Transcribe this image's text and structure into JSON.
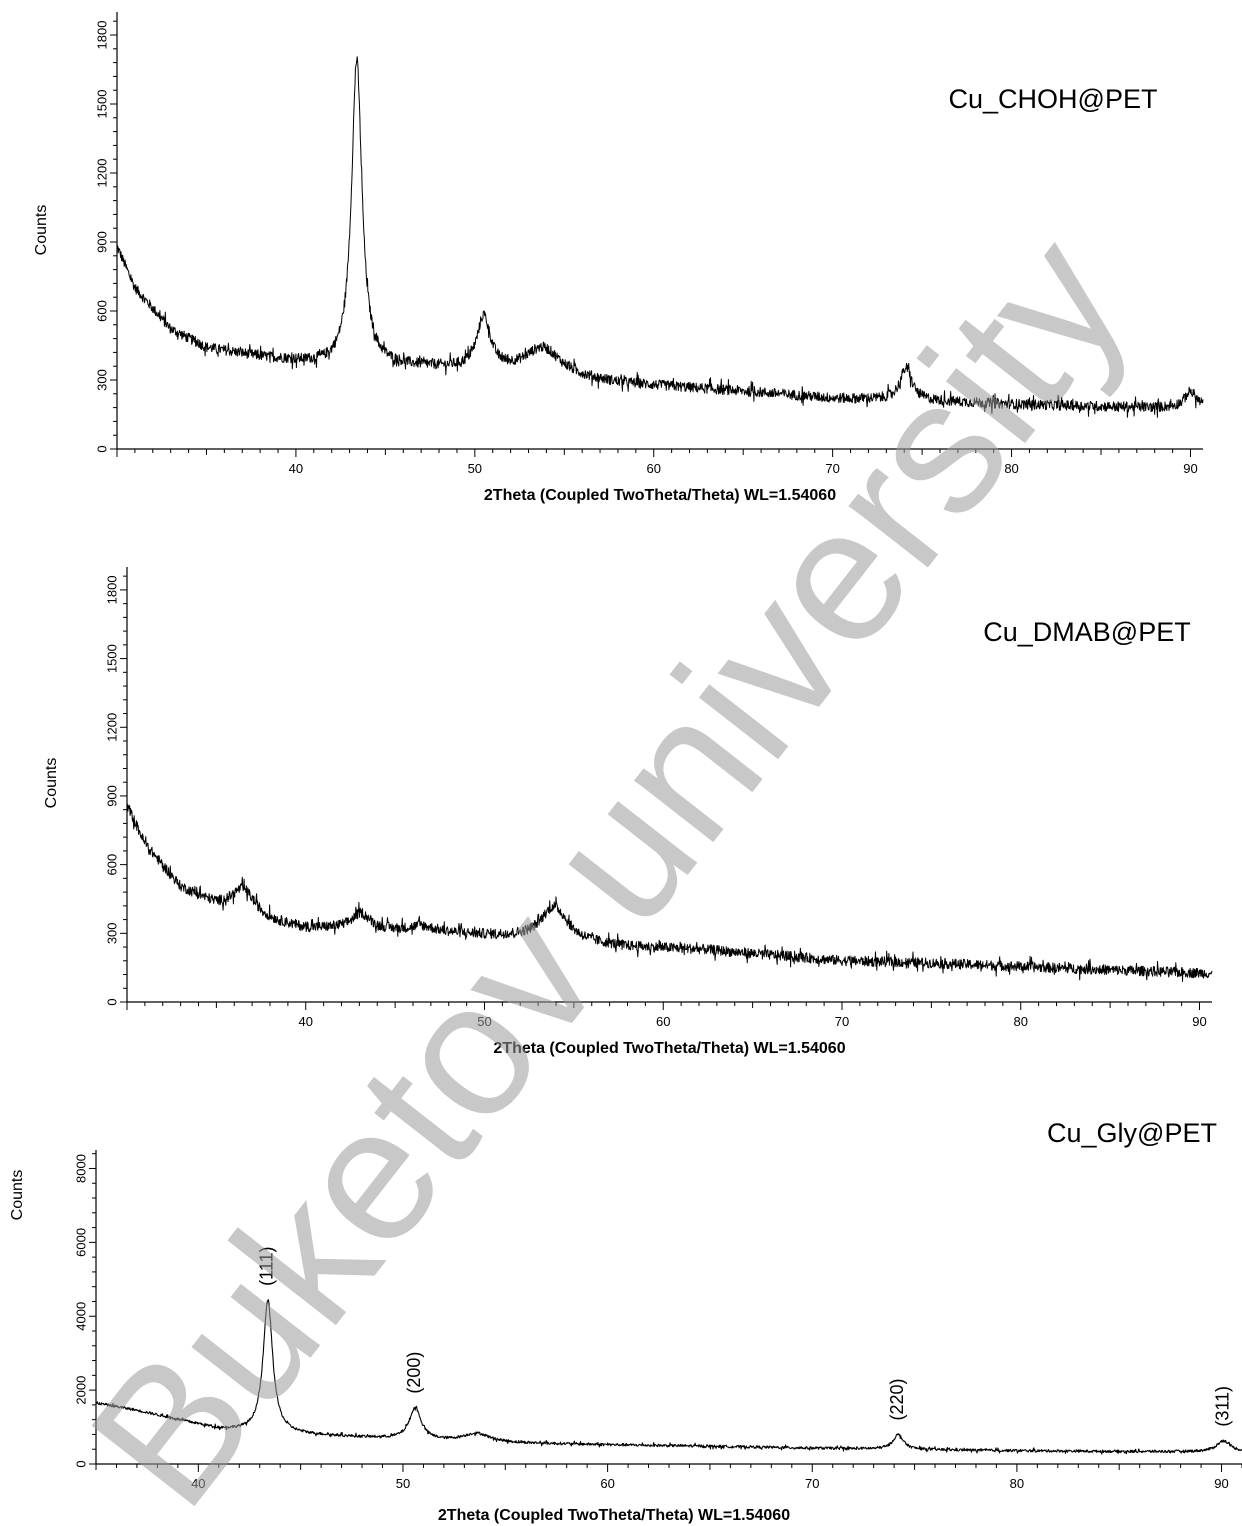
{
  "watermark": "Buketov university",
  "chart_data": [
    {
      "type": "line",
      "title": "Cu_CHOH@PET",
      "xlabel": "2Theta (Coupled TwoTheta/Theta) WL=1.54060",
      "ylabel": "Counts",
      "xlim": [
        30,
        90.7
      ],
      "ylim": [
        0,
        1900
      ],
      "xticks": [
        40,
        50,
        60,
        70,
        80,
        90
      ],
      "yticks": [
        0,
        300,
        600,
        900,
        1200,
        1500,
        1800
      ],
      "background": [
        [
          30,
          880
        ],
        [
          31,
          700
        ],
        [
          33,
          520
        ],
        [
          35,
          440
        ],
        [
          38,
          400
        ],
        [
          40,
          380
        ],
        [
          42,
          360
        ],
        [
          45,
          360
        ],
        [
          48,
          350
        ],
        [
          52,
          330
        ],
        [
          55,
          310
        ],
        [
          58,
          285
        ],
        [
          62,
          265
        ],
        [
          66,
          245
        ],
        [
          70,
          220
        ],
        [
          75,
          210
        ],
        [
          80,
          195
        ],
        [
          85,
          185
        ],
        [
          88,
          180
        ],
        [
          90.7,
          180
        ]
      ],
      "peaks": [
        {
          "x": 43.4,
          "height": 1330,
          "width": 0.35
        },
        {
          "x": 50.5,
          "height": 230,
          "width": 0.45
        },
        {
          "x": 53.8,
          "height": 120,
          "width": 1.2
        },
        {
          "x": 74.1,
          "height": 140,
          "width": 0.4
        },
        {
          "x": 90.0,
          "height": 70,
          "width": 0.4
        }
      ],
      "noise": 22
    },
    {
      "type": "line",
      "title": "Cu_DMAB@PET",
      "xlabel": "2Theta (Coupled TwoTheta/Theta) WL=1.54060",
      "ylabel": "Counts",
      "xlim": [
        30,
        90.7
      ],
      "ylim": [
        0,
        1900
      ],
      "xticks": [
        40,
        50,
        60,
        70,
        80,
        90
      ],
      "yticks": [
        0,
        300,
        600,
        900,
        1200,
        1500,
        1800
      ],
      "background": [
        [
          30,
          860
        ],
        [
          31,
          690
        ],
        [
          33,
          500
        ],
        [
          35,
          420
        ],
        [
          38,
          350
        ],
        [
          40,
          320
        ],
        [
          42,
          320
        ],
        [
          45,
          310
        ],
        [
          48,
          300
        ],
        [
          52,
          280
        ],
        [
          55,
          260
        ],
        [
          58,
          240
        ],
        [
          62,
          230
        ],
        [
          66,
          205
        ],
        [
          70,
          180
        ],
        [
          75,
          170
        ],
        [
          80,
          155
        ],
        [
          85,
          140
        ],
        [
          90.7,
          125
        ]
      ],
      "peaks": [
        {
          "x": 36.5,
          "height": 110,
          "width": 0.8
        },
        {
          "x": 43.1,
          "height": 70,
          "width": 0.6
        },
        {
          "x": 46.5,
          "height": 25,
          "width": 0.8
        },
        {
          "x": 53.9,
          "height": 150,
          "width": 0.9
        }
      ],
      "noise": 22
    },
    {
      "type": "line",
      "title": "Cu_Gly@PET",
      "xlabel": "2Theta (Coupled TwoTheta/Theta) WL=1.54060",
      "ylabel": "Counts",
      "xlim": [
        35,
        91
      ],
      "ylim": [
        0,
        8500
      ],
      "xticks": [
        40,
        50,
        60,
        70,
        80,
        90
      ],
      "yticks": [
        0,
        2000,
        4000,
        6000,
        8000
      ],
      "background": [
        [
          35,
          1650
        ],
        [
          37,
          1450
        ],
        [
          39,
          1200
        ],
        [
          41,
          950
        ],
        [
          43,
          850
        ],
        [
          45,
          800
        ],
        [
          48,
          720
        ],
        [
          52,
          620
        ],
        [
          55,
          570
        ],
        [
          60,
          520
        ],
        [
          65,
          480
        ],
        [
          70,
          430
        ],
        [
          75,
          390
        ],
        [
          80,
          360
        ],
        [
          85,
          340
        ],
        [
          91,
          330
        ]
      ],
      "peaks": [
        {
          "x": 43.4,
          "height": 3600,
          "width": 0.28
        },
        {
          "x": 50.6,
          "height": 850,
          "width": 0.35
        },
        {
          "x": 53.6,
          "height": 230,
          "width": 0.8
        },
        {
          "x": 74.2,
          "height": 400,
          "width": 0.3
        },
        {
          "x": 90.1,
          "height": 300,
          "width": 0.4
        }
      ],
      "noise": 35,
      "annotations": [
        {
          "text": "(111)",
          "x": 43.4
        },
        {
          "text": "(200)",
          "x": 50.6
        },
        {
          "text": "(220)",
          "x": 74.2
        },
        {
          "text": "(311)",
          "x": 90.1
        }
      ]
    }
  ]
}
